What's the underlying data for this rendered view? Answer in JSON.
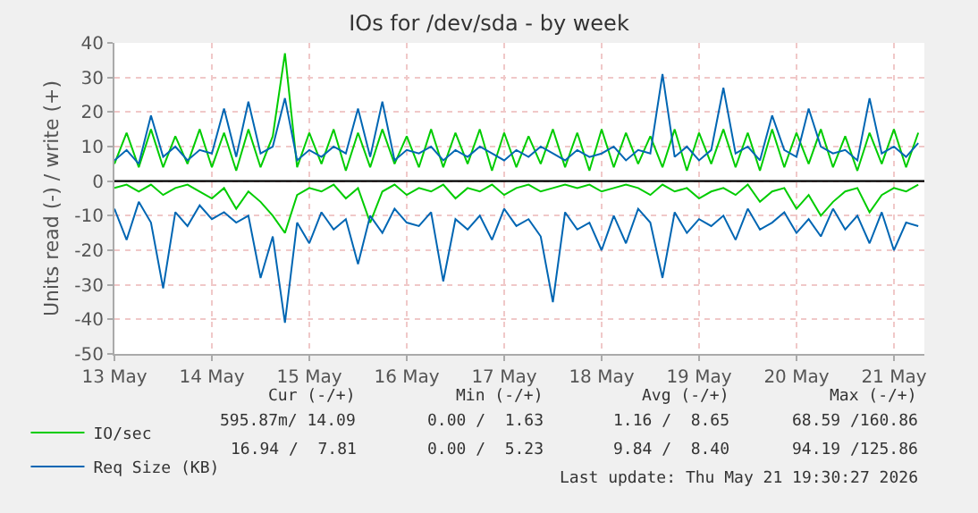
{
  "chart_data": {
    "type": "line",
    "title": "IOs for /dev/sda - by week",
    "ylabel": "Units read (-) / write (+)",
    "x": [
      "2026-05-13T12:00",
      "2026-05-13T15:00",
      "2026-05-13T18:00",
      "2026-05-13T21:00",
      "2026-05-14T00:00",
      "2026-05-14T03:00",
      "2026-05-14T06:00",
      "2026-05-14T09:00",
      "2026-05-14T12:00",
      "2026-05-14T15:00",
      "2026-05-14T18:00",
      "2026-05-14T21:00",
      "2026-05-15T00:00",
      "2026-05-15T03:00",
      "2026-05-15T06:00",
      "2026-05-15T09:00",
      "2026-05-15T12:00",
      "2026-05-15T15:00",
      "2026-05-15T18:00",
      "2026-05-15T21:00",
      "2026-05-16T00:00",
      "2026-05-16T03:00",
      "2026-05-16T06:00",
      "2026-05-16T09:00",
      "2026-05-16T12:00",
      "2026-05-16T15:00",
      "2026-05-16T18:00",
      "2026-05-16T21:00",
      "2026-05-17T00:00",
      "2026-05-17T03:00",
      "2026-05-17T06:00",
      "2026-05-17T09:00",
      "2026-05-17T12:00",
      "2026-05-17T15:00",
      "2026-05-17T18:00",
      "2026-05-17T21:00",
      "2026-05-18T00:00",
      "2026-05-18T03:00",
      "2026-05-18T06:00",
      "2026-05-18T09:00",
      "2026-05-18T12:00",
      "2026-05-18T15:00",
      "2026-05-18T18:00",
      "2026-05-18T21:00",
      "2026-05-19T00:00",
      "2026-05-19T03:00",
      "2026-05-19T06:00",
      "2026-05-19T09:00",
      "2026-05-19T12:00",
      "2026-05-19T15:00",
      "2026-05-19T18:00",
      "2026-05-19T21:00",
      "2026-05-20T00:00",
      "2026-05-20T03:00",
      "2026-05-20T06:00",
      "2026-05-20T09:00",
      "2026-05-20T12:00",
      "2026-05-20T15:00",
      "2026-05-20T18:00",
      "2026-05-20T21:00",
      "2026-05-21T00:00",
      "2026-05-21T03:00",
      "2026-05-21T06:00",
      "2026-05-21T09:00",
      "2026-05-21T12:00",
      "2026-05-21T15:00",
      "2026-05-21T18:00"
    ],
    "series": [
      {
        "name": "IO/sec",
        "color": "#00cc00",
        "values": [
          5,
          14,
          4,
          15,
          4,
          13,
          5,
          15,
          4,
          14,
          3,
          15,
          4,
          13,
          37,
          4,
          14,
          5,
          15,
          3,
          14,
          4,
          15,
          5,
          13,
          4,
          15,
          4,
          14,
          5,
          15,
          3,
          14,
          4,
          13,
          5,
          15,
          4,
          14,
          3,
          15,
          4,
          14,
          5,
          13,
          4,
          15,
          3,
          14,
          5,
          15,
          4,
          14,
          3,
          15,
          4,
          14,
          5,
          15,
          4,
          13,
          3,
          14,
          5,
          15,
          4,
          14
        ]
      },
      {
        "color": "#00cc00",
        "values": [
          -2,
          -1,
          -3,
          -1,
          -4,
          -2,
          -1,
          -3,
          -5,
          -2,
          -8,
          -3,
          -6,
          -10,
          -15,
          -4,
          -2,
          -3,
          -1,
          -5,
          -2,
          -12,
          -3,
          -1,
          -4,
          -2,
          -3,
          -1,
          -5,
          -2,
          -3,
          -1,
          -4,
          -2,
          -1,
          -3,
          -2,
          -1,
          -2,
          -1,
          -3,
          -2,
          -1,
          -2,
          -4,
          -1,
          -3,
          -2,
          -5,
          -3,
          -2,
          -4,
          -1,
          -6,
          -3,
          -2,
          -8,
          -4,
          -10,
          -6,
          -3,
          -2,
          -9,
          -4,
          -2,
          -3,
          -1
        ]
      },
      {
        "name": "Req Size (KB)",
        "color": "#0066b3",
        "values": [
          6,
          9,
          5,
          19,
          7,
          10,
          6,
          9,
          8,
          21,
          7,
          23,
          8,
          10,
          24,
          6,
          9,
          7,
          10,
          8,
          21,
          7,
          23,
          6,
          9,
          8,
          10,
          6,
          9,
          7,
          10,
          8,
          6,
          9,
          7,
          10,
          8,
          6,
          9,
          7,
          8,
          10,
          6,
          9,
          8,
          31,
          7,
          10,
          6,
          9,
          27,
          8,
          10,
          6,
          19,
          9,
          7,
          21,
          10,
          8,
          9,
          6,
          24,
          8,
          10,
          7,
          11
        ]
      },
      {
        "color": "#0066b3",
        "values": [
          -8,
          -17,
          -6,
          -12,
          -31,
          -9,
          -13,
          -7,
          -11,
          -9,
          -12,
          -10,
          -28,
          -16,
          -41,
          -12,
          -18,
          -9,
          -14,
          -11,
          -24,
          -10,
          -15,
          -8,
          -12,
          -13,
          -9,
          -29,
          -11,
          -14,
          -10,
          -17,
          -8,
          -13,
          -11,
          -16,
          -35,
          -9,
          -14,
          -12,
          -20,
          -10,
          -18,
          -8,
          -12,
          -28,
          -9,
          -15,
          -11,
          -13,
          -10,
          -17,
          -8,
          -14,
          -12,
          -9,
          -15,
          -11,
          -16,
          -8,
          -14,
          -10,
          -18,
          -9,
          -20,
          -12,
          -13
        ]
      }
    ],
    "xlim": [
      "2026-05-13T12:00",
      "2026-05-21T19:30"
    ],
    "xticks": [
      {
        "value": "2026-05-13T12:00",
        "label": "13 May"
      },
      {
        "value": "2026-05-14T12:00",
        "label": "14 May"
      },
      {
        "value": "2026-05-15T12:00",
        "label": "15 May"
      },
      {
        "value": "2026-05-16T12:00",
        "label": "16 May"
      },
      {
        "value": "2026-05-17T12:00",
        "label": "17 May"
      },
      {
        "value": "2026-05-18T12:00",
        "label": "18 May"
      },
      {
        "value": "2026-05-19T12:00",
        "label": "19 May"
      },
      {
        "value": "2026-05-20T12:00",
        "label": "20 May"
      },
      {
        "value": "2026-05-21T12:00",
        "label": "21 May"
      }
    ],
    "ylim": [
      -50,
      40
    ],
    "yticks": [
      -50,
      -40,
      -30,
      -20,
      -10,
      0,
      10,
      20,
      30,
      40
    ],
    "ref_lines": [
      {
        "axis": "y",
        "value": 0,
        "color": "#000000"
      }
    ],
    "grid": true,
    "legend": "bottom left",
    "marker": "none",
    "line_style": "solid",
    "annotations": [
      "Cur (-/+)",
      "Min (-/+)",
      "Avg (-/+)",
      "Max (-/+)",
      "595.87m/ 14.09",
      "0.00 /  1.63",
      "1.16 /  8.65",
      "68.59 /160.86",
      "16.94 /  7.81",
      "0.00 /  5.23",
      "9.84 /  8.40",
      "94.19 /125.86",
      "Last update: Thu May 21 19:30:27 2026"
    ]
  }
}
